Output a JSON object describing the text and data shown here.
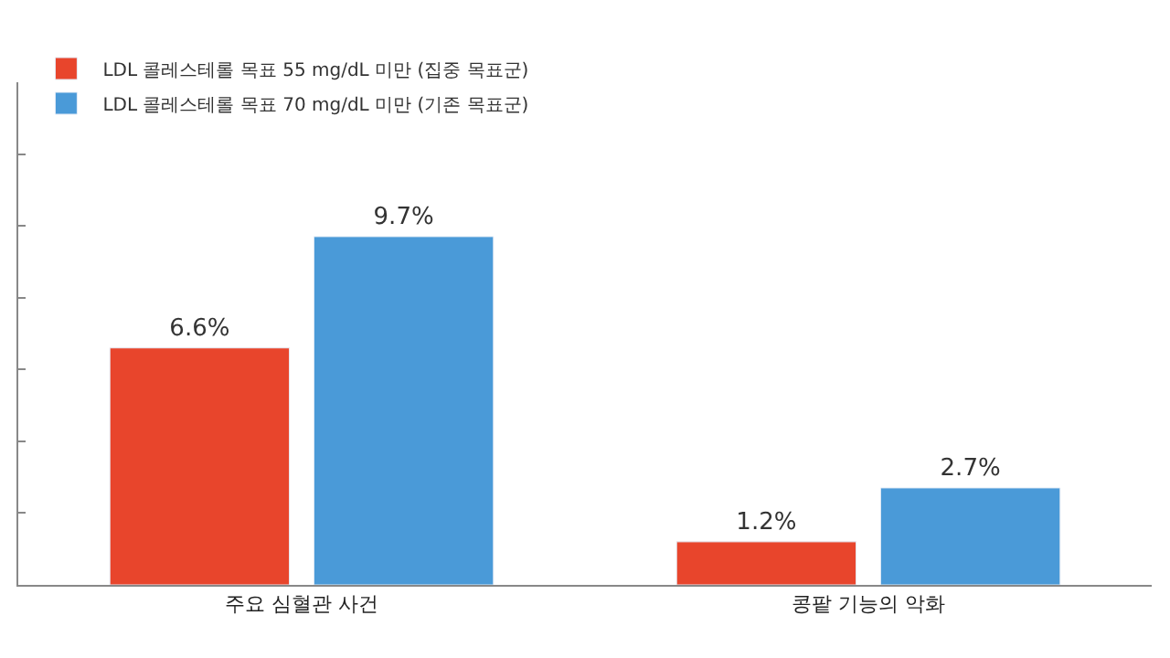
{
  "chart_data": {
    "type": "bar",
    "categories": [
      "주요 심혈관 사건",
      "콩팥 기능의 악화"
    ],
    "series": [
      {
        "name": "LDL 콜레스테롤 목표 55 mg/dL 미만 (집중 목표군)",
        "color": "#e8452c",
        "values": [
          6.6,
          1.2
        ],
        "value_labels": [
          "6.6%",
          "1.2%"
        ]
      },
      {
        "name": "LDL 콜레스테롤 목표 70 mg/dL 미만 (기존 목표군)",
        "color": "#4a9ad8",
        "values": [
          9.7,
          2.7
        ],
        "value_labels": [
          "9.7%",
          "2.7%"
        ]
      }
    ],
    "ylim": [
      0,
      14
    ],
    "yticks": [
      {
        "value": 0,
        "label": null
      },
      {
        "value": 2,
        "label": null
      },
      {
        "value": 4,
        "label": null
      },
      {
        "value": 6,
        "label": null
      },
      {
        "value": 8,
        "label": null
      },
      {
        "value": 10,
        "label": null
      },
      {
        "value": 12,
        "label": null
      }
    ],
    "tick_labels": "x",
    "grid": false,
    "legend": "top left"
  }
}
